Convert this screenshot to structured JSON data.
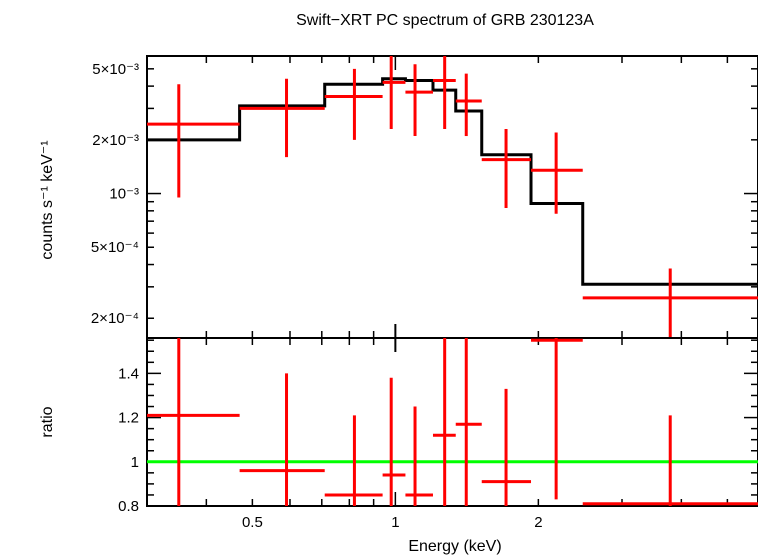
{
  "title": "Swift−XRT PC spectrum of GRB 230123A",
  "colors": {
    "data": "#ff0000",
    "model": "#000000",
    "unity": "#00ff00",
    "axes": "#000000"
  },
  "chart_data": [
    {
      "type": "scatter",
      "panel": "spectrum",
      "ylabel": "counts s⁻¹ keV⁻¹",
      "yscale": "log",
      "ylim": [
        0.000155,
        0.0059
      ],
      "xscale": "log",
      "xlim": [
        0.3,
        5.8
      ],
      "ytick_values": [
        0.0002,
        0.0005,
        0.001,
        0.002,
        0.005
      ],
      "ytick_labels": [
        "2×10⁻⁴",
        "5×10⁻⁴",
        "10⁻³",
        "2×10⁻³",
        "5×10⁻³"
      ],
      "series": [
        {
          "role": "data",
          "points": [
            {
              "x": 0.35,
              "xlo": 0.3,
              "xhi": 0.47,
              "y": 0.00245,
              "ylo": 0.00095,
              "yhi": 0.0041
            },
            {
              "x": 0.59,
              "xlo": 0.47,
              "xhi": 0.71,
              "y": 0.003,
              "ylo": 0.0016,
              "yhi": 0.0044
            },
            {
              "x": 0.82,
              "xlo": 0.71,
              "xhi": 0.94,
              "y": 0.0035,
              "ylo": 0.002,
              "yhi": 0.005
            },
            {
              "x": 0.98,
              "xlo": 0.94,
              "xhi": 1.05,
              "y": 0.0042,
              "ylo": 0.0023,
              "yhi": 0.0061
            },
            {
              "x": 1.1,
              "xlo": 1.05,
              "xhi": 1.2,
              "y": 0.0037,
              "ylo": 0.0021,
              "yhi": 0.0053
            },
            {
              "x": 1.27,
              "xlo": 1.2,
              "xhi": 1.34,
              "y": 0.0043,
              "ylo": 0.0023,
              "yhi": 0.0061
            },
            {
              "x": 1.41,
              "xlo": 1.34,
              "xhi": 1.52,
              "y": 0.0033,
              "ylo": 0.0021,
              "yhi": 0.0047
            },
            {
              "x": 1.71,
              "xlo": 1.52,
              "xhi": 1.93,
              "y": 0.00155,
              "ylo": 0.00083,
              "yhi": 0.0023
            },
            {
              "x": 2.18,
              "xlo": 1.93,
              "xhi": 2.48,
              "y": 0.00135,
              "ylo": 0.00077,
              "yhi": 0.0022
            },
            {
              "x": 3.79,
              "xlo": 2.48,
              "xhi": 5.8,
              "y": 0.00026,
              "ylo": 0.00015,
              "yhi": 0.00038
            }
          ]
        },
        {
          "role": "model",
          "steps": [
            {
              "xlo": 0.3,
              "xhi": 0.47,
              "y": 0.002
            },
            {
              "xlo": 0.47,
              "xhi": 0.71,
              "y": 0.0031
            },
            {
              "xlo": 0.71,
              "xhi": 0.94,
              "y": 0.0041
            },
            {
              "xlo": 0.94,
              "xhi": 1.05,
              "y": 0.0044
            },
            {
              "xlo": 1.05,
              "xhi": 1.2,
              "y": 0.0043
            },
            {
              "xlo": 1.2,
              "xhi": 1.34,
              "y": 0.0038
            },
            {
              "xlo": 1.34,
              "xhi": 1.52,
              "y": 0.0029
            },
            {
              "xlo": 1.52,
              "xhi": 1.93,
              "y": 0.00165
            },
            {
              "xlo": 1.93,
              "xhi": 2.48,
              "y": 0.00088
            },
            {
              "xlo": 2.48,
              "xhi": 5.8,
              "y": 0.00031
            }
          ]
        }
      ]
    },
    {
      "type": "scatter",
      "panel": "ratio",
      "xlabel": "Energy (keV)",
      "ylabel": "ratio",
      "xscale": "log",
      "xlim": [
        0.3,
        5.8
      ],
      "ylim": [
        0.8,
        1.56
      ],
      "ytick_values": [
        0.8,
        1,
        1.2,
        1.4
      ],
      "ytick_labels": [
        "0.8",
        "1",
        "1.2",
        "1.4"
      ],
      "xtick_values": [
        0.5,
        1,
        2
      ],
      "xtick_labels": [
        "0.5",
        "1",
        "2"
      ],
      "reference_line": 1,
      "points": [
        {
          "x": 0.35,
          "xlo": 0.3,
          "xhi": 0.47,
          "y": 1.21,
          "ylo": 0.8,
          "yhi": 1.56
        },
        {
          "x": 0.59,
          "xlo": 0.47,
          "xhi": 0.71,
          "y": 0.96,
          "ylo": 0.8,
          "yhi": 1.4
        },
        {
          "x": 0.82,
          "xlo": 0.71,
          "xhi": 0.94,
          "y": 0.85,
          "ylo": 0.8,
          "yhi": 1.21
        },
        {
          "x": 0.98,
          "xlo": 0.94,
          "xhi": 1.05,
          "y": 0.94,
          "ylo": 0.8,
          "yhi": 1.38
        },
        {
          "x": 1.1,
          "xlo": 1.05,
          "xhi": 1.2,
          "y": 0.85,
          "ylo": 0.8,
          "yhi": 1.25
        },
        {
          "x": 1.27,
          "xlo": 1.2,
          "xhi": 1.34,
          "y": 1.12,
          "ylo": 0.8,
          "yhi": 1.56
        },
        {
          "x": 1.41,
          "xlo": 1.34,
          "xhi": 1.52,
          "y": 1.17,
          "ylo": 0.8,
          "yhi": 1.56
        },
        {
          "x": 1.71,
          "xlo": 1.52,
          "xhi": 1.93,
          "y": 0.91,
          "ylo": 0.8,
          "yhi": 1.33
        },
        {
          "x": 2.18,
          "xlo": 1.93,
          "xhi": 2.48,
          "y": 1.55,
          "ylo": 0.83,
          "yhi": 1.56
        },
        {
          "x": 3.79,
          "xlo": 2.48,
          "xhi": 5.8,
          "y": 0.81,
          "ylo": 0.8,
          "yhi": 1.21
        }
      ]
    }
  ]
}
